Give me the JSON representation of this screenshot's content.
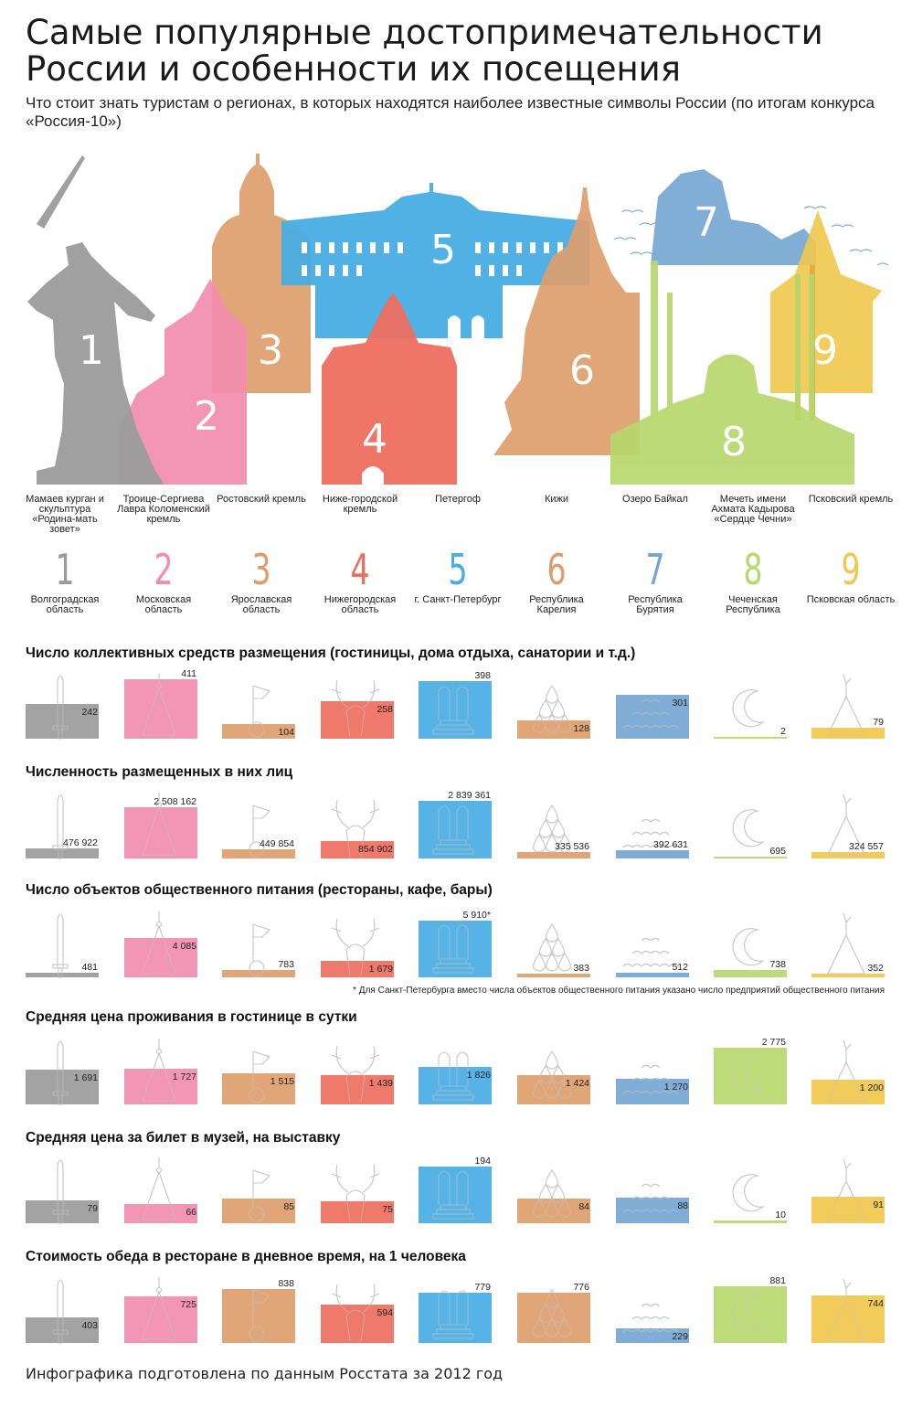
{
  "title": "Самые популярные достопримечательности России и особенности их посещения",
  "subtitle": "Что стоит знать туристам о регионах, в которых находятся наиболее известные символы России (по итогам конкурса «Россия-10»)",
  "footnote": "* Для Санкт-Петербурга вместо числа объектов общественного питания указано число предприятий общественного питания",
  "source": "Инфографика подготовлена по данным Росстата за 2012 год",
  "colors": [
    "#9b9b9b",
    "#f28db0",
    "#dd9e6c",
    "#ee6e5e",
    "#49ade3",
    "#dd9e6c",
    "#74a6d2",
    "#b7d86d",
    "#f0c84c"
  ],
  "sights": [
    {
      "num": "1",
      "name": "Мамаев курган и скульптура «Родина-мать зовет»",
      "region": "Волгоградская область",
      "icon": "sword-icon"
    },
    {
      "num": "2",
      "name": "Троице-Сергиева Лавра Коломенский кремль",
      "region": "Московская область",
      "icon": "pendant-triangle-icon"
    },
    {
      "num": "3",
      "name": "Ростовский кремль",
      "region": "Ярославская область",
      "icon": "flag-circle-icon"
    },
    {
      "num": "4",
      "name": "Ниже-городской кремль",
      "region": "Нижегородская область",
      "icon": "deer-head-icon"
    },
    {
      "num": "5",
      "name": "Петергоф",
      "region": "г. Санкт-Петербург",
      "icon": "monument-arches-icon"
    },
    {
      "num": "6",
      "name": "Кижи",
      "region": "Республика Карелия",
      "icon": "drops-icon"
    },
    {
      "num": "7",
      "name": "Озеро Байкал",
      "region": "Республика Бурятия",
      "icon": "waves-icon"
    },
    {
      "num": "8",
      "name": "Мечеть имени Ахмата Кадырова «Сердце Чечни»",
      "region": "Чеченская Республика",
      "icon": "crescent-icon"
    },
    {
      "num": "9",
      "name": "Псковский кремль",
      "region": "Псковская область",
      "icon": "hanging-triangle-icon"
    }
  ],
  "chart_data": [
    {
      "type": "bar",
      "title": "Число коллективных средств размещения (гостиницы, дома отдыха, санатории и т.д.)",
      "categories": [
        "1",
        "2",
        "3",
        "4",
        "5",
        "6",
        "7",
        "8",
        "9"
      ],
      "values": [
        242,
        411,
        104,
        258,
        398,
        128,
        301,
        2,
        79
      ],
      "labels": [
        "242",
        "411",
        "104",
        "258",
        "398",
        "128",
        "301",
        "2",
        "79"
      ]
    },
    {
      "type": "bar",
      "title": "Численность размещенных в них лиц",
      "categories": [
        "1",
        "2",
        "3",
        "4",
        "5",
        "6",
        "7",
        "8",
        "9"
      ],
      "values": [
        476922,
        2508162,
        449854,
        854902,
        2839361,
        335536,
        392631,
        695,
        324557
      ],
      "labels": [
        "476 922",
        "2 508 162",
        "449 854",
        "854 902",
        "2 839 361",
        "335 536",
        "392 631",
        "695",
        "324 557"
      ]
    },
    {
      "type": "bar",
      "title": "Число объектов общественного питания (рестораны, кафе, бары)",
      "categories": [
        "1",
        "2",
        "3",
        "4",
        "5",
        "6",
        "7",
        "8",
        "9"
      ],
      "values": [
        481,
        4085,
        783,
        1679,
        5910,
        383,
        512,
        738,
        352
      ],
      "labels": [
        "481",
        "4 085",
        "783",
        "1 679",
        "5 910*",
        "383",
        "512",
        "738",
        "352"
      ]
    },
    {
      "type": "bar",
      "title": "Средняя цена проживания в гостинице в сутки",
      "categories": [
        "1",
        "2",
        "3",
        "4",
        "5",
        "6",
        "7",
        "8",
        "9"
      ],
      "values": [
        1691,
        1727,
        1515,
        1439,
        1826,
        1424,
        1270,
        2775,
        1200
      ],
      "labels": [
        "1 691",
        "1 727",
        "1 515",
        "1 439",
        "1 826",
        "1 424",
        "1 270",
        "2 775",
        "1 200"
      ]
    },
    {
      "type": "bar",
      "title": "Средняя цена за билет в музей, на выставку",
      "categories": [
        "1",
        "2",
        "3",
        "4",
        "5",
        "6",
        "7",
        "8",
        "9"
      ],
      "values": [
        79,
        66,
        85,
        75,
        194,
        84,
        88,
        10,
        91
      ],
      "labels": [
        "79",
        "66",
        "85",
        "75",
        "194",
        "84",
        "88",
        "10",
        "91"
      ]
    },
    {
      "type": "bar",
      "title": "Стоимость обеда в ресторане в дневное время, на 1 человека",
      "categories": [
        "1",
        "2",
        "3",
        "4",
        "5",
        "6",
        "7",
        "8",
        "9"
      ],
      "values": [
        403,
        725,
        838,
        594,
        779,
        776,
        229,
        881,
        744
      ],
      "labels": [
        "403",
        "725",
        "838",
        "594",
        "779",
        "776",
        "229",
        "881",
        "744"
      ]
    }
  ]
}
